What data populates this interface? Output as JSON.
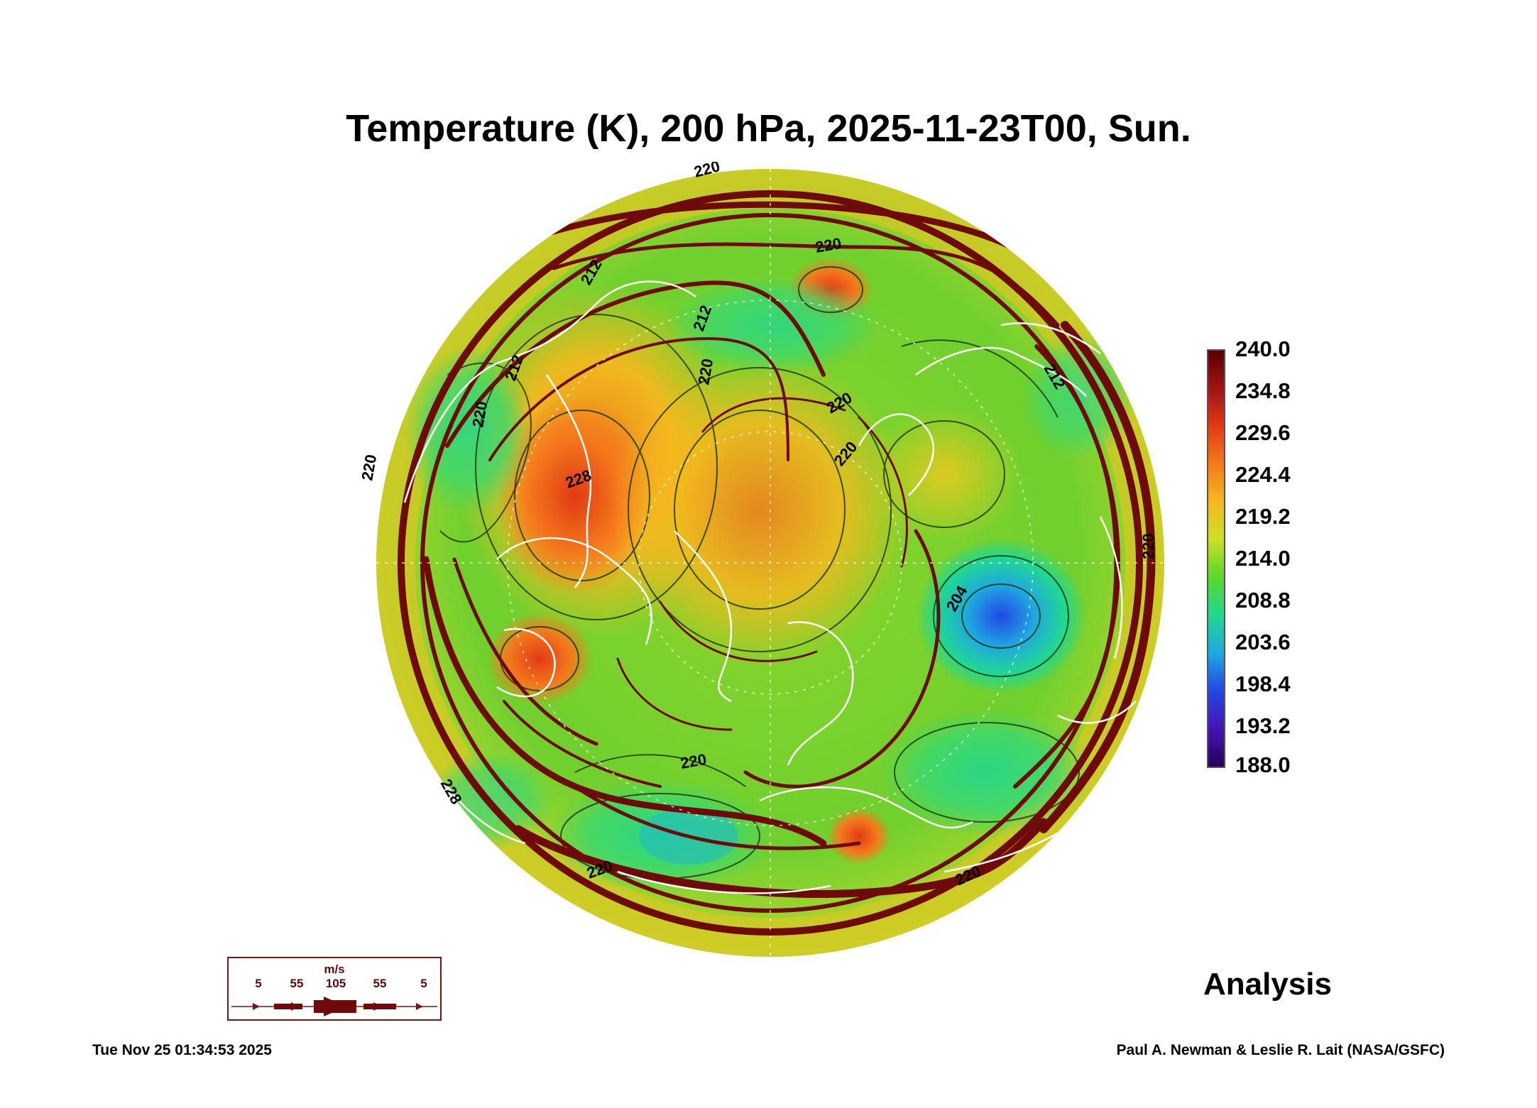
{
  "title": "Temperature (K), 200 hPa, 2025-11-23T00, Sun.",
  "colorbar": {
    "labels": [
      "240.0",
      "234.8",
      "229.6",
      "224.4",
      "219.2",
      "214.0",
      "208.8",
      "203.6",
      "198.4",
      "193.2",
      "188.0"
    ],
    "min": 188.0,
    "max": 240.0,
    "colors": [
      "#5a0000",
      "#a01414",
      "#e23a14",
      "#f47a1c",
      "#f6b81e",
      "#c8e028",
      "#58d82a",
      "#20d890",
      "#20a8e0",
      "#2248e6",
      "#4614b4",
      "#28005a"
    ]
  },
  "contour_labels": [
    "220",
    "220",
    "212",
    "212",
    "212",
    "220",
    "220",
    "228",
    "220",
    "220",
    "220",
    "204",
    "212",
    "220",
    "220",
    "228",
    "220",
    "220"
  ],
  "wind_legend": {
    "unit": "m/s",
    "values": [
      "5",
      "55",
      "105",
      "55",
      "5"
    ]
  },
  "analysis_label": "Analysis",
  "footer": {
    "timestamp": "Tue Nov 25 01:34:53 2025",
    "credit": "Paul A. Newman & Leslie R. Lait (NASA/GSFC)"
  },
  "colors": {
    "wind": "#6e0a0a",
    "coast": "#ffffff",
    "contour": "#1f3a14"
  }
}
